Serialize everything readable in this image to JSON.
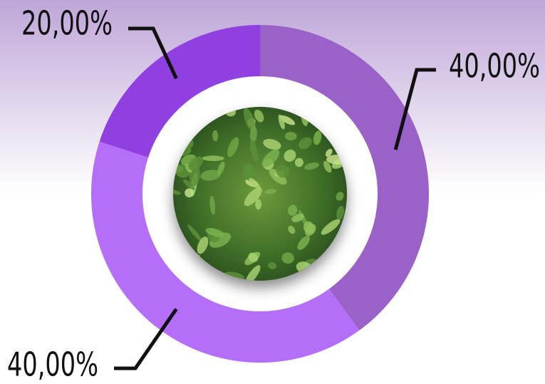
{
  "chart_data": {
    "type": "donut",
    "values": [
      40,
      40,
      20
    ],
    "value_labels": [
      "40,00%",
      "40,00%",
      "20,00%"
    ],
    "colors": [
      "#9a62c8",
      "#b46ef8",
      "#9040e0"
    ]
  }
}
